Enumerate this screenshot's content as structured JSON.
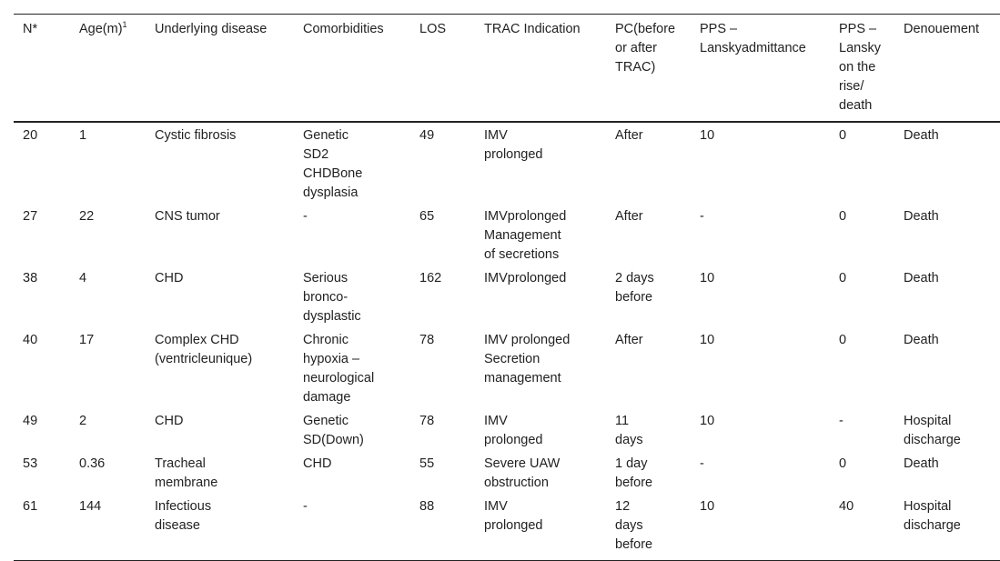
{
  "table": {
    "headers": [
      {
        "text": "N*",
        "sup": ""
      },
      {
        "text": "Age(m)",
        "sup": "1"
      },
      {
        "text": "Underlying disease",
        "sup": ""
      },
      {
        "text": "Comorbidities",
        "sup": ""
      },
      {
        "text": "LOS",
        "sup": ""
      },
      {
        "text": "TRAC Indication",
        "sup": ""
      },
      {
        "text": "PC(before\nor after\nTRAC)",
        "sup": ""
      },
      {
        "text": "PPS –\nLanskyadmittance",
        "sup": ""
      },
      {
        "text": "PPS –\nLansky\non the\nrise/\ndeath",
        "sup": ""
      },
      {
        "text": "Denouement",
        "sup": ""
      }
    ],
    "rows": [
      [
        "20",
        "1",
        "Cystic fibrosis",
        "Genetic\nSD2\nCHDBone\ndysplasia",
        "49",
        "IMV\nprolonged",
        "After",
        "10",
        "0",
        "Death"
      ],
      [
        "27",
        "22",
        "CNS tumor",
        "-",
        "65",
        "IMVprolonged\nManagement\nof secretions",
        "After",
        "-",
        "0",
        "Death"
      ],
      [
        "38",
        "4",
        "CHD",
        "Serious\nbronco-\ndysplastic",
        "162",
        "IMVprolonged",
        "2 days\nbefore",
        "10",
        "0",
        "Death"
      ],
      [
        "40",
        "17",
        "Complex CHD\n(ventricleunique)",
        "Chronic\nhypoxia –\nneurological\ndamage",
        "78",
        "IMV prolonged\nSecretion\nmanagement",
        "After",
        "10",
        "0",
        "Death"
      ],
      [
        "49",
        "2",
        "CHD",
        "Genetic\nSD(Down)",
        "78",
        "IMV\nprolonged",
        "11\ndays",
        "10",
        "-",
        "Hospital\ndischarge"
      ],
      [
        "53",
        "0.36",
        "Tracheal\nmembrane",
        "CHD",
        "55",
        "Severe UAW\nobstruction",
        "1 day\nbefore",
        "-",
        "0",
        "Death"
      ],
      [
        "61",
        "144",
        "Infectious\ndisease",
        "-",
        "88",
        "IMV\nprolonged",
        "12\ndays\nbefore",
        "10",
        "40",
        "Hospital\ndischarge"
      ]
    ]
  }
}
